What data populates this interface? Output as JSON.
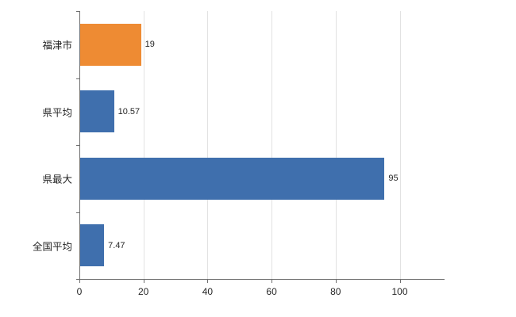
{
  "chart_data": {
    "type": "bar",
    "orientation": "horizontal",
    "title": "",
    "categories": [
      "福津市",
      "県平均",
      "県最大",
      "全国平均"
    ],
    "values": [
      19,
      10.57,
      95,
      7.47
    ],
    "value_labels": [
      "19",
      "10.57",
      "95",
      "7.47"
    ],
    "bar_colors": [
      "#ee8b33",
      "#3f6fad",
      "#3f6fad",
      "#3f6fad"
    ],
    "xlim": [
      0,
      114
    ],
    "xticks": [
      0,
      20,
      40,
      60,
      80,
      100
    ],
    "xtick_labels": [
      "0",
      "20",
      "40",
      "60",
      "80",
      "100"
    ],
    "grid": "vertical",
    "legend": null
  },
  "colors": {
    "axis": "#6e6e6e",
    "gridline": "#e2e2e2",
    "text": "#262626",
    "background": "#ffffff"
  }
}
